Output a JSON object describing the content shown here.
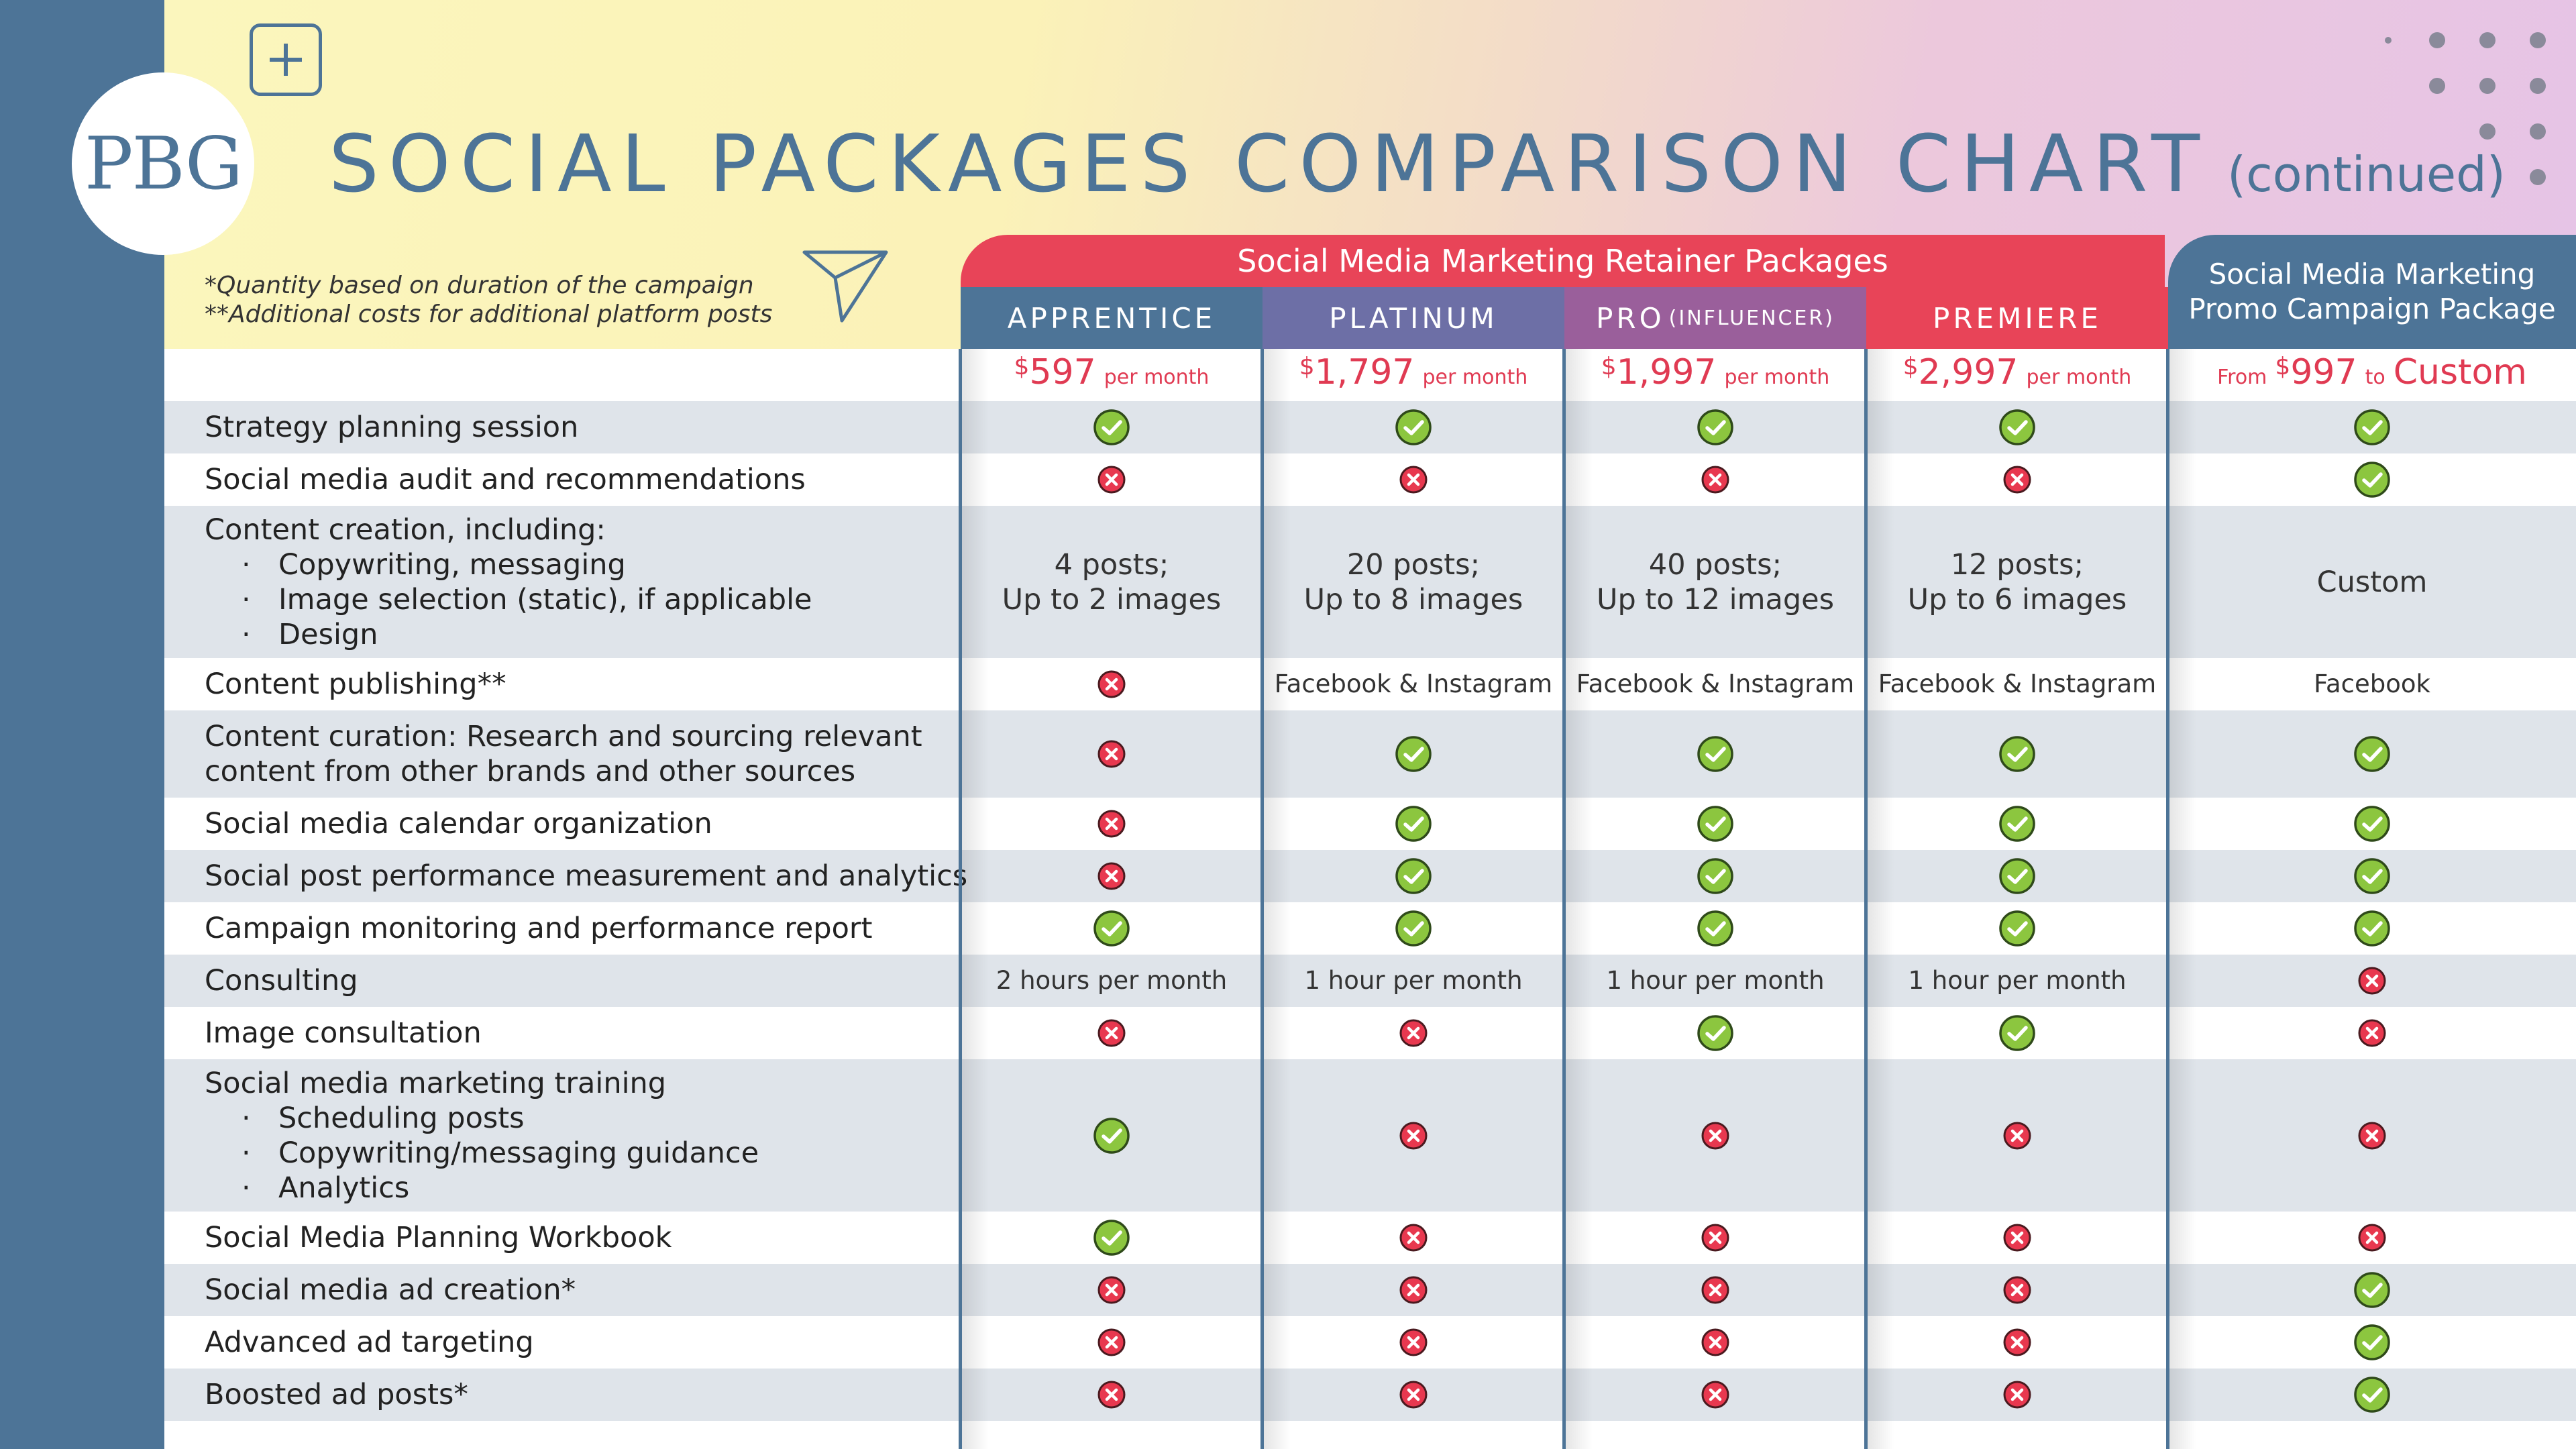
{
  "header": {
    "logo": "PBG",
    "title": "SOCIAL PACKAGES COMPARISON CHART",
    "subtitle": "(continued)",
    "note1": "*Quantity based on duration of the campaign",
    "note2": "**Additional costs for additional platform posts"
  },
  "groups": {
    "retainer": "Social Media Marketing Retainer Packages",
    "promo_line1": "Social Media Marketing",
    "promo_line2": "Promo Campaign Package"
  },
  "columns": [
    {
      "name": "APPRENTICE",
      "suffix": "",
      "price_currency": "$",
      "price": "597",
      "price_period": "per month"
    },
    {
      "name": "PLATINUM",
      "suffix": "",
      "price_currency": "$",
      "price": "1,797",
      "price_period": "per month"
    },
    {
      "name": "PRO",
      "suffix": "(INFLUENCER)",
      "price_currency": "$",
      "price": "1,997",
      "price_period": "per month"
    },
    {
      "name": "PREMIERE",
      "suffix": "",
      "price_currency": "$",
      "price": "2,997",
      "price_period": "per month"
    }
  ],
  "promo_price": {
    "from": "From",
    "currency": "$",
    "amount": "997",
    "to": "to",
    "custom": "Custom"
  },
  "colors": {
    "sidebar": "#4d7497",
    "accent_red": "#e84458",
    "check_green": "#8cc63f",
    "x_red": "#e8384f"
  },
  "rows": [
    {
      "label": "Strategy planning session",
      "bullets": [],
      "values": [
        "check",
        "check",
        "check",
        "check",
        "check"
      ]
    },
    {
      "label": "Social media audit and recommendations",
      "bullets": [],
      "values": [
        "x",
        "x",
        "x",
        "x",
        "check"
      ]
    },
    {
      "label": "Content creation, including:",
      "bullets": [
        "Copywriting, messaging",
        "Image selection (static), if applicable",
        "Design"
      ],
      "values": [
        "4 posts;|Up to 2 images",
        "20 posts;|Up to 8 images",
        "40 posts;|Up to 12 images",
        "12 posts;|Up to 6 images",
        "Custom"
      ]
    },
    {
      "label": "Content publishing**",
      "bullets": [],
      "values": [
        "x",
        "Facebook & Instagram",
        "Facebook & Instagram",
        "Facebook & Instagram",
        "Facebook"
      ]
    },
    {
      "label": "Content curation: Research and sourcing relevant",
      "label2": "content from other brands and other sources",
      "bullets": [],
      "values": [
        "x",
        "check",
        "check",
        "check",
        "check"
      ]
    },
    {
      "label": "Social media calendar organization",
      "bullets": [],
      "values": [
        "x",
        "check",
        "check",
        "check",
        "check"
      ]
    },
    {
      "label": "Social post performance measurement and analytics",
      "bullets": [],
      "values": [
        "x",
        "check",
        "check",
        "check",
        "check"
      ]
    },
    {
      "label": "Campaign monitoring and performance report",
      "bullets": [],
      "values": [
        "check",
        "check",
        "check",
        "check",
        "check"
      ]
    },
    {
      "label": "Consulting",
      "bullets": [],
      "values": [
        "2 hours per month",
        "1 hour per month",
        "1 hour per month",
        "1 hour per month",
        "x"
      ]
    },
    {
      "label": "Image consultation",
      "bullets": [],
      "values": [
        "x",
        "x",
        "check",
        "check",
        "x"
      ]
    },
    {
      "label": "Social media marketing training",
      "bullets": [
        "Scheduling posts",
        "Copywriting/messaging guidance",
        "Analytics"
      ],
      "values": [
        "check",
        "x",
        "x",
        "x",
        "x"
      ]
    },
    {
      "label": "Social Media Planning Workbook",
      "bullets": [],
      "values": [
        "check",
        "x",
        "x",
        "x",
        "x"
      ]
    },
    {
      "label": "Social media ad creation*",
      "bullets": [],
      "values": [
        "x",
        "x",
        "x",
        "x",
        "check"
      ]
    },
    {
      "label": "Advanced ad targeting",
      "bullets": [],
      "values": [
        "x",
        "x",
        "x",
        "x",
        "check"
      ]
    },
    {
      "label": "Boosted ad posts*",
      "bullets": [],
      "values": [
        "x",
        "x",
        "x",
        "x",
        "check"
      ]
    }
  ]
}
